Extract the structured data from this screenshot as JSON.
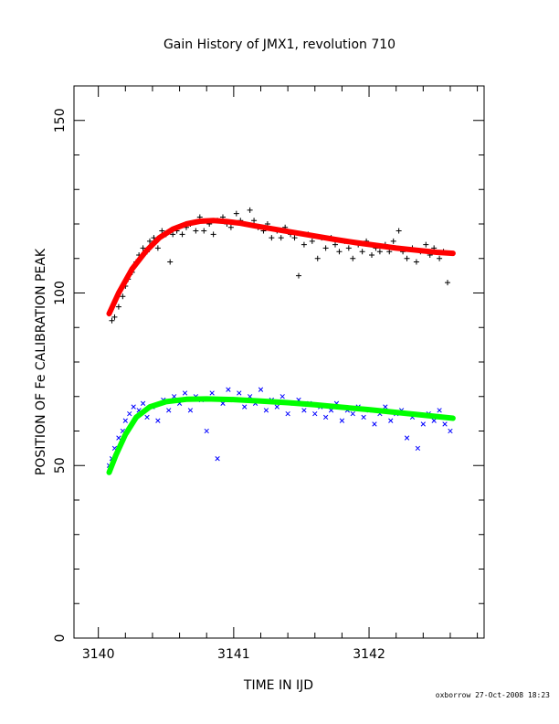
{
  "chart_data": {
    "type": "scatter",
    "title": "Gain History of JMX1, revolution 710",
    "xlabel": "TIME IN IJD",
    "ylabel": "POSITION OF Fe CALIBRATION PEAK",
    "xlim": [
      3139.82,
      3142.85
    ],
    "ylim": [
      0,
      160
    ],
    "xticks": [
      3140,
      3141,
      3142
    ],
    "yticks": [
      0,
      50,
      100,
      150
    ],
    "grid": false,
    "series": [
      {
        "marker": "plus",
        "color": "#000000",
        "points": [
          [
            3140.08,
            94
          ],
          [
            3140.1,
            92
          ],
          [
            3140.12,
            93
          ],
          [
            3140.15,
            96
          ],
          [
            3140.18,
            99
          ],
          [
            3140.2,
            102
          ],
          [
            3140.22,
            104
          ],
          [
            3140.25,
            106
          ],
          [
            3140.28,
            109
          ],
          [
            3140.3,
            111
          ],
          [
            3140.33,
            113
          ],
          [
            3140.36,
            112
          ],
          [
            3140.38,
            115
          ],
          [
            3140.41,
            116
          ],
          [
            3140.44,
            113
          ],
          [
            3140.47,
            118
          ],
          [
            3140.5,
            117
          ],
          [
            3140.53,
            109
          ],
          [
            3140.55,
            117
          ],
          [
            3140.58,
            118
          ],
          [
            3140.62,
            117
          ],
          [
            3140.65,
            119
          ],
          [
            3140.68,
            120
          ],
          [
            3140.72,
            118
          ],
          [
            3140.75,
            122
          ],
          [
            3140.78,
            118
          ],
          [
            3140.82,
            120
          ],
          [
            3140.85,
            117
          ],
          [
            3140.88,
            121
          ],
          [
            3140.92,
            122
          ],
          [
            3140.95,
            120
          ],
          [
            3140.98,
            119
          ],
          [
            3141.02,
            123
          ],
          [
            3141.05,
            121
          ],
          [
            3141.08,
            120
          ],
          [
            3141.12,
            124
          ],
          [
            3141.15,
            121
          ],
          [
            3141.18,
            119
          ],
          [
            3141.22,
            118
          ],
          [
            3141.25,
            120
          ],
          [
            3141.28,
            116
          ],
          [
            3141.32,
            118
          ],
          [
            3141.35,
            116
          ],
          [
            3141.38,
            119
          ],
          [
            3141.42,
            117
          ],
          [
            3141.45,
            116
          ],
          [
            3141.48,
            105
          ],
          [
            3141.52,
            114
          ],
          [
            3141.55,
            117
          ],
          [
            3141.58,
            115
          ],
          [
            3141.62,
            110
          ],
          [
            3141.65,
            116
          ],
          [
            3141.68,
            113
          ],
          [
            3141.72,
            116
          ],
          [
            3141.75,
            114
          ],
          [
            3141.78,
            112
          ],
          [
            3141.82,
            115
          ],
          [
            3141.85,
            113
          ],
          [
            3141.88,
            110
          ],
          [
            3141.92,
            114
          ],
          [
            3141.95,
            112
          ],
          [
            3141.98,
            115
          ],
          [
            3142.02,
            111
          ],
          [
            3142.05,
            113
          ],
          [
            3142.08,
            112
          ],
          [
            3142.12,
            114
          ],
          [
            3142.15,
            112
          ],
          [
            3142.18,
            115
          ],
          [
            3142.22,
            118
          ],
          [
            3142.25,
            112
          ],
          [
            3142.28,
            110
          ],
          [
            3142.32,
            113
          ],
          [
            3142.35,
            109
          ],
          [
            3142.38,
            112
          ],
          [
            3142.42,
            114
          ],
          [
            3142.45,
            111
          ],
          [
            3142.48,
            113
          ],
          [
            3142.52,
            110
          ],
          [
            3142.55,
            112
          ],
          [
            3142.58,
            103
          ]
        ]
      },
      {
        "marker": "x",
        "color": "#0000ff",
        "points": [
          [
            3140.08,
            50
          ],
          [
            3140.1,
            52
          ],
          [
            3140.12,
            55
          ],
          [
            3140.15,
            58
          ],
          [
            3140.18,
            60
          ],
          [
            3140.2,
            63
          ],
          [
            3140.23,
            65
          ],
          [
            3140.26,
            67
          ],
          [
            3140.3,
            66
          ],
          [
            3140.33,
            68
          ],
          [
            3140.36,
            64
          ],
          [
            3140.4,
            67
          ],
          [
            3140.44,
            63
          ],
          [
            3140.48,
            69
          ],
          [
            3140.52,
            66
          ],
          [
            3140.56,
            70
          ],
          [
            3140.6,
            68
          ],
          [
            3140.64,
            71
          ],
          [
            3140.68,
            66
          ],
          [
            3140.72,
            70
          ],
          [
            3140.76,
            69
          ],
          [
            3140.8,
            60
          ],
          [
            3140.84,
            71
          ],
          [
            3140.88,
            52
          ],
          [
            3140.92,
            68
          ],
          [
            3140.96,
            72
          ],
          [
            3141.0,
            69
          ],
          [
            3141.04,
            71
          ],
          [
            3141.08,
            67
          ],
          [
            3141.12,
            70
          ],
          [
            3141.16,
            68
          ],
          [
            3141.2,
            72
          ],
          [
            3141.24,
            66
          ],
          [
            3141.28,
            69
          ],
          [
            3141.32,
            67
          ],
          [
            3141.36,
            70
          ],
          [
            3141.4,
            65
          ],
          [
            3141.44,
            68
          ],
          [
            3141.48,
            69
          ],
          [
            3141.52,
            66
          ],
          [
            3141.56,
            68
          ],
          [
            3141.6,
            65
          ],
          [
            3141.64,
            67
          ],
          [
            3141.68,
            64
          ],
          [
            3141.72,
            66
          ],
          [
            3141.76,
            68
          ],
          [
            3141.8,
            63
          ],
          [
            3141.84,
            66
          ],
          [
            3141.88,
            65
          ],
          [
            3141.92,
            67
          ],
          [
            3141.96,
            64
          ],
          [
            3142.0,
            66
          ],
          [
            3142.04,
            62
          ],
          [
            3142.08,
            65
          ],
          [
            3142.12,
            67
          ],
          [
            3142.16,
            63
          ],
          [
            3142.2,
            65
          ],
          [
            3142.24,
            66
          ],
          [
            3142.28,
            58
          ],
          [
            3142.32,
            64
          ],
          [
            3142.36,
            55
          ],
          [
            3142.4,
            62
          ],
          [
            3142.44,
            65
          ],
          [
            3142.48,
            63
          ],
          [
            3142.52,
            66
          ],
          [
            3142.56,
            62
          ],
          [
            3142.6,
            60
          ]
        ]
      },
      {
        "type": "line",
        "color": "#ff0000",
        "points": [
          [
            3140.08,
            94
          ],
          [
            3140.15,
            100
          ],
          [
            3140.25,
            107
          ],
          [
            3140.35,
            112
          ],
          [
            3140.45,
            116
          ],
          [
            3140.55,
            118.5
          ],
          [
            3140.65,
            120
          ],
          [
            3140.75,
            120.8
          ],
          [
            3140.85,
            121
          ],
          [
            3140.95,
            120.7
          ],
          [
            3141.05,
            120.2
          ],
          [
            3141.15,
            119.5
          ],
          [
            3141.3,
            118.5
          ],
          [
            3141.45,
            117.5
          ],
          [
            3141.6,
            116.5
          ],
          [
            3141.75,
            115.5
          ],
          [
            3141.9,
            114.6
          ],
          [
            3142.05,
            113.8
          ],
          [
            3142.2,
            113
          ],
          [
            3142.35,
            112.4
          ],
          [
            3142.5,
            111.8
          ],
          [
            3142.62,
            111.5
          ]
        ]
      },
      {
        "type": "line",
        "color": "#00ff00",
        "points": [
          [
            3140.08,
            48
          ],
          [
            3140.13,
            53
          ],
          [
            3140.2,
            59
          ],
          [
            3140.28,
            64
          ],
          [
            3140.38,
            67
          ],
          [
            3140.5,
            68.5
          ],
          [
            3140.65,
            69.2
          ],
          [
            3140.8,
            69.3
          ],
          [
            3141.0,
            69.1
          ],
          [
            3141.2,
            68.7
          ],
          [
            3141.4,
            68.2
          ],
          [
            3141.6,
            67.6
          ],
          [
            3141.8,
            66.9
          ],
          [
            3142.0,
            66.2
          ],
          [
            3142.2,
            65.4
          ],
          [
            3142.4,
            64.6
          ],
          [
            3142.62,
            63.7
          ]
        ]
      }
    ]
  },
  "footer": "oxborrow 27-Oct-2008 18:23"
}
